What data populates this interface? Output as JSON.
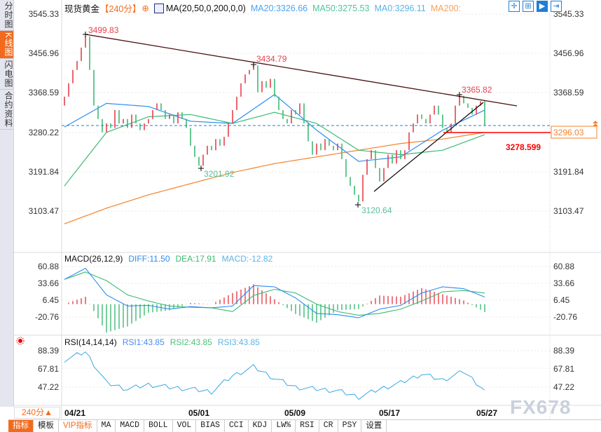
{
  "sidebar": {
    "items": [
      {
        "label": "分时图",
        "active": false
      },
      {
        "label": "K线图",
        "active": true
      },
      {
        "label": "闪电图",
        "active": false
      },
      {
        "label": "合约资料",
        "active": false
      }
    ]
  },
  "header": {
    "symbol": "现货黄金",
    "period": "【240分】",
    "ma_label": "MA(20,50,0,200,0,0)",
    "ma20": "MA20:3326.66",
    "ma50": "MA50:3275.53",
    "ma0": "MA0:3296.11",
    "ma200": "MA200:",
    "tools": [
      "crosshair-icon",
      "range-icon",
      "play-icon",
      "exit-icon"
    ]
  },
  "colors": {
    "up": "#e8414b",
    "down": "#3dba74",
    "ma20": "#2d8cf0",
    "ma50": "#3dba74",
    "ma200": "#f5822a",
    "trend": "#4a1010",
    "accent": "#f26b1d"
  },
  "main_axis": {
    "ticks": [
      "3545.33",
      "3456.96",
      "3368.59",
      "3280.22",
      "3191.84",
      "3103.47"
    ]
  },
  "annotations": {
    "high1": "3499.83",
    "high2": "3434.79",
    "high3": "3365.82",
    "low1": "3201.92",
    "low2": "3120.64",
    "current_price": "3296.03",
    "support_level": "3278.599"
  },
  "macd_panel": {
    "title": "MACD(26,12,9)",
    "diff": "DIFF:11.50",
    "dea": "DEA:17.91",
    "macd": "MACD:-12.82",
    "ticks": [
      "60.88",
      "33.66",
      "6.45",
      "-20.76"
    ]
  },
  "rsi_panel": {
    "title": "RSI(14,14,14)",
    "rsi1": "RSI1:43.85",
    "rsi2": "RSI2:43.85",
    "rsi3": "RSI3:43.85",
    "ticks": [
      "88.39",
      "67.81",
      "47.22"
    ]
  },
  "time_axis": {
    "labels": [
      "04/21",
      "05/01",
      "05/09",
      "05/17",
      "05/27"
    ]
  },
  "period_selector": "240分▲",
  "watermark": "FX678",
  "tabs": [
    "指标",
    "模板",
    "VIP指标",
    "MA",
    "MACD",
    "BOLL",
    "VOL",
    "BIAS",
    "CCI",
    "KDJ",
    "LW%",
    "RSI",
    "CR",
    "PSY",
    "设置"
  ],
  "chart_data": {
    "type": "candlestick",
    "title": "现货黄金 240分",
    "y_range": [
      3103.47,
      3545.33
    ],
    "closes": [
      3360,
      3390,
      3420,
      3440,
      3470,
      3495,
      3420,
      3340,
      3310,
      3280,
      3300,
      3290,
      3330,
      3300,
      3310,
      3290,
      3320,
      3300,
      3285,
      3300,
      3310,
      3330,
      3345,
      3330,
      3310,
      3320,
      3300,
      3325,
      3310,
      3290,
      3250,
      3225,
      3205,
      3230,
      3250,
      3240,
      3265,
      3250,
      3270,
      3300,
      3330,
      3360,
      3390,
      3410,
      3420,
      3430,
      3370,
      3395,
      3380,
      3400,
      3360,
      3330,
      3310,
      3300,
      3330,
      3320,
      3345,
      3300,
      3260,
      3230,
      3255,
      3240,
      3265,
      3250,
      3240,
      3255,
      3220,
      3180,
      3160,
      3140,
      3125,
      3185,
      3220,
      3240,
      3200,
      3170,
      3200,
      3230,
      3210,
      3240,
      3220,
      3240,
      3280,
      3300,
      3320,
      3310,
      3300,
      3320,
      3340,
      3320,
      3290,
      3280,
      3300,
      3340,
      3362,
      3345,
      3335,
      3320,
      3340,
      3350,
      3296
    ],
    "ma20": [
      3292,
      3345,
      3338,
      3305,
      3300,
      3365,
      3285,
      3215,
      3225,
      3285,
      3330
    ],
    "ma50": [
      3160,
      3280,
      3315,
      3320,
      3300,
      3325,
      3300,
      3240,
      3230,
      3240,
      3275
    ],
    "ma200": [
      3075,
      3110,
      3140,
      3165,
      3190,
      3210,
      3225,
      3240,
      3255,
      3265,
      3280
    ],
    "macd_diff": [
      40,
      58,
      15,
      -3,
      -2,
      -8,
      -4,
      -6,
      -3,
      30,
      28,
      10,
      -15,
      -17,
      -22,
      -8,
      -2,
      18,
      28,
      25,
      11.5
    ],
    "macd_dea": [
      40,
      52,
      38,
      15,
      5,
      -3,
      -5,
      -6,
      -12,
      14,
      24,
      18,
      0,
      -12,
      -18,
      -15,
      -8,
      5,
      20,
      22,
      17.91
    ],
    "rsi": [
      78,
      87,
      52,
      45,
      50,
      47,
      45,
      42,
      60,
      70,
      57,
      47,
      45,
      43,
      36,
      45,
      52,
      62,
      55,
      65,
      43.85
    ],
    "macd_range": [
      -35,
      70
    ],
    "rsi_range": [
      30,
      95
    ],
    "trendlines": [
      {
        "from": [
          "04/21 high",
          3499.83
        ],
        "to": [
          "05/27",
          3350
        ]
      },
      {
        "from": [
          "05/15",
          3150
        ],
        "to": [
          "05/27",
          3355
        ]
      }
    ],
    "support": 3278.599,
    "last_price": 3296.03
  }
}
